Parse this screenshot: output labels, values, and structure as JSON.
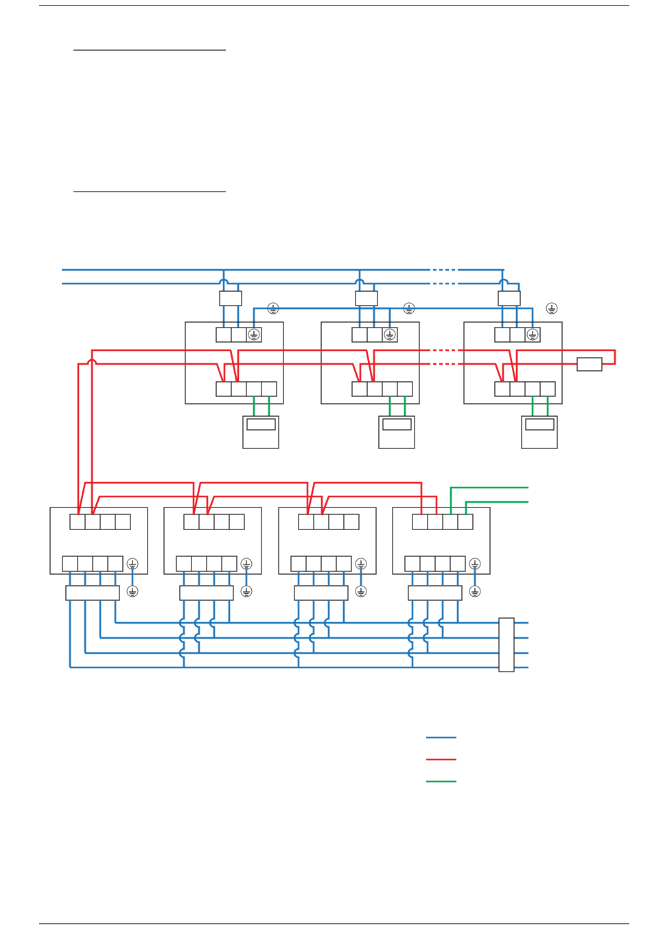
{
  "colors": {
    "power_wire": "#1b75bc",
    "control_wire": "#ed1c24",
    "remote_wire": "#00a651",
    "outline": "#231f20"
  },
  "legend": {
    "items": [
      {
        "color_key": "power_wire"
      },
      {
        "color_key": "control_wire"
      },
      {
        "color_key": "remote_wire"
      }
    ]
  },
  "indoor_units_count": 3,
  "outdoor_units_count": 4
}
